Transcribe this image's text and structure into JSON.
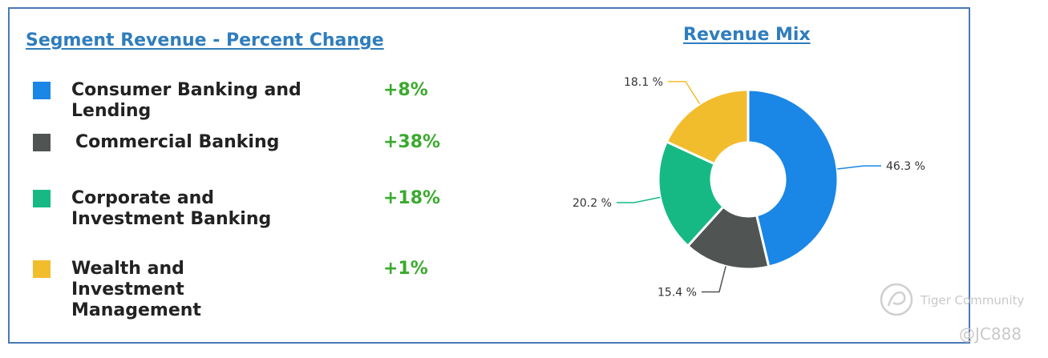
{
  "segment_panel": {
    "title": "Segment Revenue - Percent Change",
    "rows": [
      {
        "label": "Consumer Banking and Lending",
        "change": "+8%",
        "color": "#1a86e6"
      },
      {
        "label": "Commercial Banking",
        "change": "+38%",
        "color": "#505453"
      },
      {
        "label": "Corporate and Investment Banking",
        "change": "+18%",
        "color": "#16b984"
      },
      {
        "label": "Wealth and Investment Management",
        "change": "+1%",
        "color": "#f2bd2d"
      }
    ],
    "change_color": "#3aaa2c"
  },
  "mix_panel": {
    "title": "Revenue Mix"
  },
  "chart_data": {
    "type": "pie",
    "donut": true,
    "title": "Revenue Mix",
    "categories": [
      "Consumer Banking and Lending",
      "Commercial Banking",
      "Corporate and Investment Banking",
      "Wealth and Investment Management"
    ],
    "values": [
      46.3,
      15.4,
      20.2,
      18.1
    ],
    "labels": [
      "46.3 %",
      "15.4 %",
      "20.2 %",
      "18.1 %"
    ],
    "colors": [
      "#1a86e6",
      "#505453",
      "#16b984",
      "#f2bd2d"
    ]
  },
  "watermark": {
    "brand": "Tiger Community",
    "user": "@JC888"
  }
}
